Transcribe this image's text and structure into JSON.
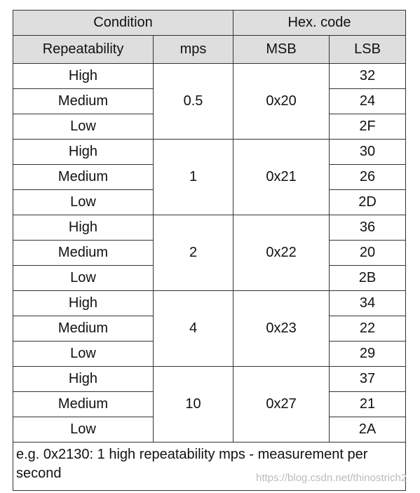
{
  "header": {
    "row1": [
      "Condition",
      "Hex. code"
    ],
    "row2": [
      "Repeatability",
      "mps",
      "MSB",
      "LSB"
    ]
  },
  "groups": [
    {
      "mps": "0.5",
      "msb": "0x20",
      "rows": [
        {
          "repeatability": "High",
          "lsb": "32"
        },
        {
          "repeatability": "Medium",
          "lsb": "24"
        },
        {
          "repeatability": "Low",
          "lsb": "2F"
        }
      ]
    },
    {
      "mps": "1",
      "msb": "0x21",
      "rows": [
        {
          "repeatability": "High",
          "lsb": "30"
        },
        {
          "repeatability": "Medium",
          "lsb": "26"
        },
        {
          "repeatability": "Low",
          "lsb": "2D"
        }
      ]
    },
    {
      "mps": "2",
      "msb": "0x22",
      "rows": [
        {
          "repeatability": "High",
          "lsb": "36"
        },
        {
          "repeatability": "Medium",
          "lsb": "20"
        },
        {
          "repeatability": "Low",
          "lsb": "2B"
        }
      ]
    },
    {
      "mps": "4",
      "msb": "0x23",
      "rows": [
        {
          "repeatability": "High",
          "lsb": "34"
        },
        {
          "repeatability": "Medium",
          "lsb": "22"
        },
        {
          "repeatability": "Low",
          "lsb": "29"
        }
      ]
    },
    {
      "mps": "10",
      "msb": "0x27",
      "rows": [
        {
          "repeatability": "High",
          "lsb": "37"
        },
        {
          "repeatability": "Medium",
          "lsb": "21"
        },
        {
          "repeatability": "Low",
          "lsb": "2A"
        }
      ]
    }
  ],
  "footnote": "e.g. 0x2130: 1 high repeatability mps - measurement per second",
  "watermark": "https://blog.csdn.net/thinostrich2"
}
